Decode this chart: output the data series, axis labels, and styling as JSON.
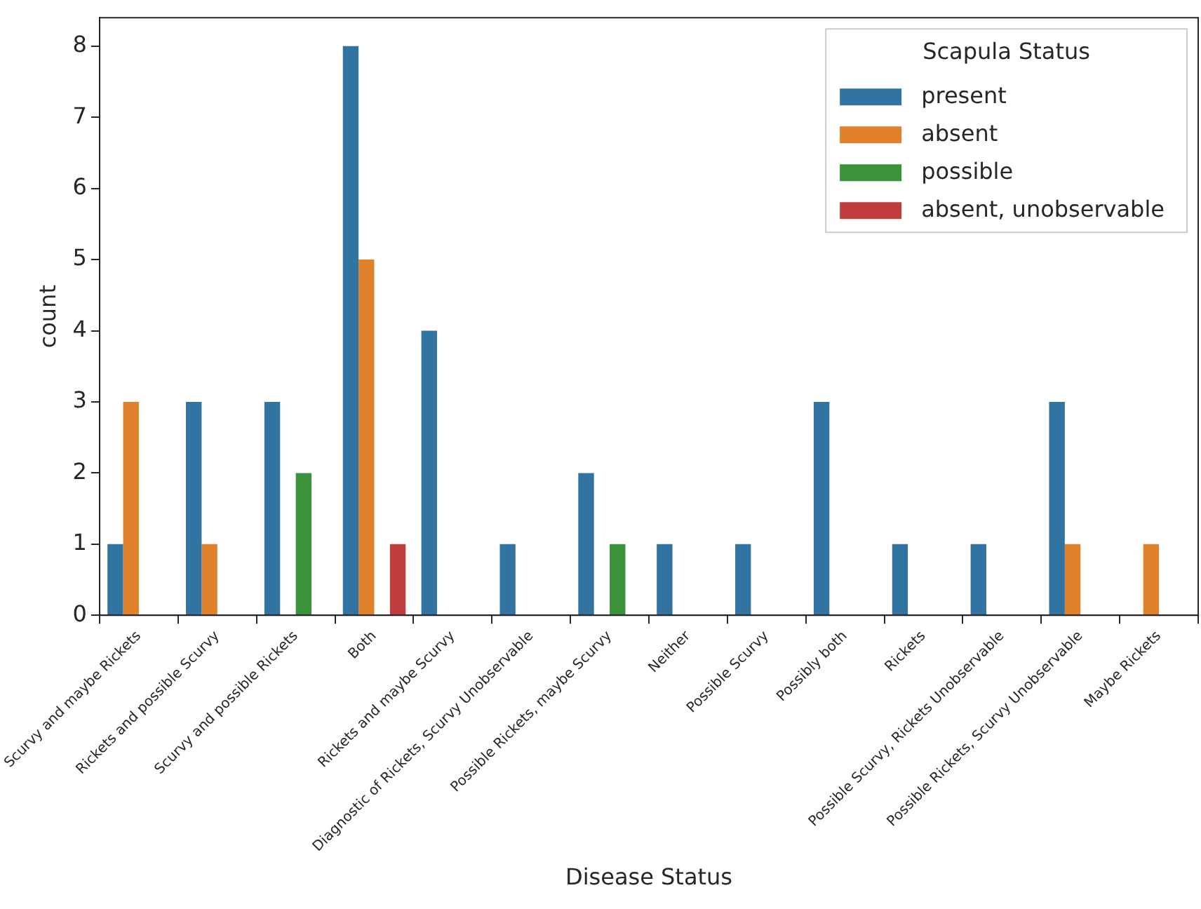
{
  "chart_data": {
    "type": "bar",
    "xlabel": "Disease Status",
    "ylabel": "count",
    "legend_title": "Scapula Status",
    "legend": "top right",
    "grid": false,
    "categories": [
      "Scurvy and maybe Rickets",
      "Rickets and possible Scurvy",
      "Scurvy and possible Rickets",
      "Both",
      "Rickets and maybe Scurvy",
      "Diagnostic of Rickets, Scurvy Unobservable",
      "Possible Rickets, maybe Scurvy",
      "Neither",
      "Possible Scurvy",
      "Possibly both",
      "Rickets",
      "Possible Scurvy, Rickets Unobservable",
      "Possible Rickets, Scurvy Unobservable",
      "Maybe Rickets"
    ],
    "series": [
      {
        "name": "present",
        "color": "#3274a1",
        "values": [
          1,
          3,
          3,
          8,
          4,
          1,
          2,
          1,
          1,
          3,
          1,
          1,
          3,
          null
        ]
      },
      {
        "name": "absent",
        "color": "#e1812c",
        "values": [
          3,
          1,
          null,
          5,
          null,
          null,
          null,
          null,
          null,
          null,
          null,
          null,
          1,
          1
        ]
      },
      {
        "name": "possible",
        "color": "#3a923a",
        "values": [
          null,
          null,
          2,
          null,
          null,
          null,
          1,
          null,
          null,
          null,
          null,
          null,
          null,
          null
        ]
      },
      {
        "name": "absent, unobservable",
        "color": "#c03d3e",
        "values": [
          null,
          null,
          null,
          1,
          null,
          null,
          null,
          null,
          null,
          null,
          null,
          null,
          null,
          null
        ]
      }
    ],
    "ylim": [
      0,
      8.4
    ],
    "yticks": [
      0,
      1,
      2,
      3,
      4,
      5,
      6,
      7,
      8
    ]
  }
}
